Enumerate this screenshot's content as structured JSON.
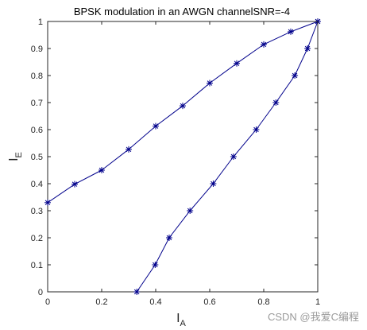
{
  "chart_data": {
    "type": "line",
    "title": "BPSK modulation in an AWGN channelSNR=-4",
    "xlabel": {
      "main": "I",
      "sub": "A"
    },
    "ylabel": {
      "main": "I",
      "sub": "E"
    },
    "xlim": [
      0,
      1
    ],
    "ylim": [
      0,
      1
    ],
    "xticks": [
      "0",
      "0.2",
      "0.4",
      "0.6",
      "0.8",
      "1"
    ],
    "yticks": [
      "0",
      "0.1",
      "0.2",
      "0.3",
      "0.4",
      "0.5",
      "0.6",
      "0.7",
      "0.8",
      "0.9",
      "1"
    ],
    "grid": false,
    "series": [
      {
        "color": "#00008b",
        "marker": "*",
        "x": [
          0,
          0.1,
          0.2,
          0.3,
          0.4,
          0.5,
          0.6,
          0.7,
          0.8,
          0.9,
          1
        ],
        "y": [
          0.33,
          0.398,
          0.45,
          0.527,
          0.613,
          0.688,
          0.772,
          0.845,
          0.915,
          0.962,
          1
        ]
      },
      {
        "color": "#00008b",
        "marker": "*",
        "x": [
          0.33,
          0.398,
          0.45,
          0.527,
          0.613,
          0.688,
          0.772,
          0.845,
          0.915,
          0.962,
          1
        ],
        "y": [
          0,
          0.1,
          0.2,
          0.3,
          0.4,
          0.5,
          0.6,
          0.7,
          0.8,
          0.9,
          1
        ]
      }
    ]
  },
  "watermark": "CSDN @我爱C编程"
}
